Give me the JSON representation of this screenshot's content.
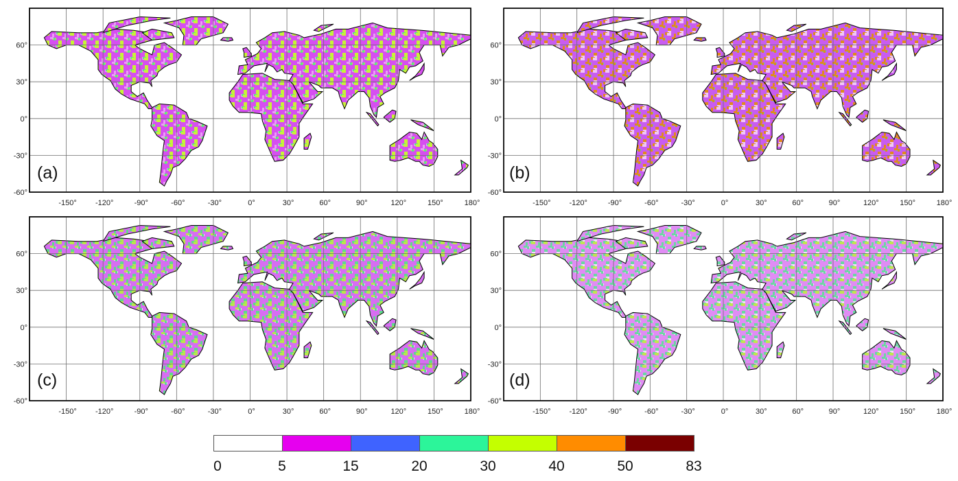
{
  "panels": [
    {
      "id": "a",
      "label": "(a)"
    },
    {
      "id": "b",
      "label": "(b)"
    },
    {
      "id": "c",
      "label": "(c)"
    },
    {
      "id": "d",
      "label": "(d)"
    }
  ],
  "lat_ticks": [
    "60°",
    "30°",
    "0°",
    "-30°",
    "-60°"
  ],
  "lon_ticks": [
    "-150°",
    "-120°",
    "-90°",
    "-60°",
    "-30°",
    "0°",
    "30°",
    "60°",
    "90°",
    "120°",
    "150°",
    "180°"
  ],
  "projection": "plate carrée, longitude -180° to 180°, latitude -60° to 90°",
  "legend": {
    "labels": [
      "0",
      "5",
      "15",
      "20",
      "30",
      "40",
      "50",
      "83"
    ],
    "colors": [
      "#ffffff",
      "#e600ef",
      "#3f63ff",
      "#2cf59a",
      "#c4ff00",
      "#ff8c00",
      "#7a0000"
    ]
  },
  "land_fill_by_panel": {
    "a": [
      "#d64ff0",
      "#5ee58a",
      "#c8f238",
      "#e89ff5"
    ],
    "b": [
      "#c95cf0",
      "#58d8a0",
      "#e08a1e",
      "#f0c7f7"
    ],
    "c": [
      "#d76ef2",
      "#60d890",
      "#b8e84a",
      "#f3d0f9"
    ],
    "d": [
      "#e08cf4",
      "#6ad8a2",
      "#c0e650",
      "#f5dafa"
    ]
  }
}
